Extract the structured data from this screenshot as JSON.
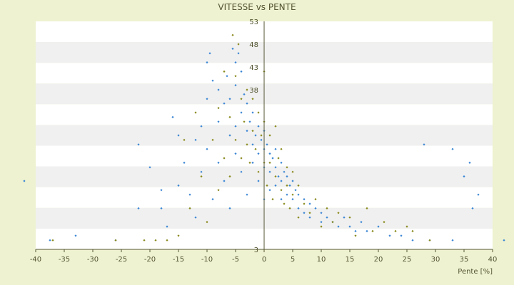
{
  "colors": {
    "background": "#eef2d0",
    "plot_band_light": "#ffffff",
    "plot_band_dark": "#f0f0f0",
    "axis": "#555533",
    "series_blue": "#3a86d4",
    "series_olive": "#8a8a1e"
  },
  "chart_data": {
    "type": "scatter",
    "title": "VITESSE vs PENTE",
    "xlabel": "Pente [%]",
    "ylabel": "",
    "xlim": [
      -40,
      40
    ],
    "ylim": [
      3,
      53
    ],
    "x_ticks": [
      "-40",
      "-35",
      "-30",
      "-25",
      "-20",
      "-15",
      "-10",
      "-5",
      "0",
      "5",
      "10",
      "15",
      "20",
      "25",
      "30",
      "35",
      "40"
    ],
    "y_ticks": [
      "3",
      "38",
      "43",
      "48",
      "53"
    ],
    "grid": "horizontal-bands",
    "series": [
      {
        "color": "#3a86d4",
        "marker": "diamond",
        "points": [
          [
            -42,
            18
          ],
          [
            -37.5,
            5
          ],
          [
            -33,
            6
          ],
          [
            -26,
            5
          ],
          [
            -22,
            26
          ],
          [
            -22,
            12
          ],
          [
            -20,
            21
          ],
          [
            -18,
            16
          ],
          [
            -18,
            12
          ],
          [
            -17,
            8
          ],
          [
            -16,
            32
          ],
          [
            -15,
            28
          ],
          [
            -15,
            17
          ],
          [
            -14,
            22
          ],
          [
            -13,
            15
          ],
          [
            -12,
            27
          ],
          [
            -12,
            10
          ],
          [
            -11,
            30
          ],
          [
            -11,
            20
          ],
          [
            -10,
            44
          ],
          [
            -10,
            36
          ],
          [
            -10,
            25
          ],
          [
            -9.5,
            46
          ],
          [
            -9,
            40
          ],
          [
            -9,
            14
          ],
          [
            -8,
            38
          ],
          [
            -8,
            31
          ],
          [
            -8,
            22
          ],
          [
            -7,
            35
          ],
          [
            -7,
            18
          ],
          [
            -6.5,
            41
          ],
          [
            -6,
            36
          ],
          [
            -6,
            28
          ],
          [
            -6,
            12
          ],
          [
            -5.5,
            47
          ],
          [
            -5,
            44
          ],
          [
            -5,
            39
          ],
          [
            -5,
            30
          ],
          [
            -5,
            24
          ],
          [
            -4.5,
            46
          ],
          [
            -4,
            42
          ],
          [
            -4,
            33
          ],
          [
            -4,
            20
          ],
          [
            -3.5,
            37
          ],
          [
            -3,
            35
          ],
          [
            -3,
            29
          ],
          [
            -3,
            15
          ],
          [
            -2.5,
            31
          ],
          [
            -2,
            33
          ],
          [
            -2,
            26
          ],
          [
            -2,
            22
          ],
          [
            -1.5,
            28
          ],
          [
            -1,
            30
          ],
          [
            -1,
            24
          ],
          [
            -1,
            18
          ],
          [
            -0.5,
            27
          ],
          [
            0,
            29
          ],
          [
            0,
            25
          ],
          [
            0,
            21
          ],
          [
            0,
            14
          ],
          [
            0.5,
            26
          ],
          [
            1,
            24
          ],
          [
            1,
            20
          ],
          [
            1,
            16
          ],
          [
            1.5,
            23
          ],
          [
            2,
            25
          ],
          [
            2,
            21
          ],
          [
            2,
            17
          ],
          [
            2.5,
            19
          ],
          [
            3,
            22
          ],
          [
            3,
            18
          ],
          [
            3,
            14
          ],
          [
            3.5,
            20
          ],
          [
            4,
            19
          ],
          [
            4,
            15
          ],
          [
            4.5,
            17
          ],
          [
            5,
            18
          ],
          [
            5,
            14
          ],
          [
            5.5,
            16
          ],
          [
            6,
            15
          ],
          [
            6,
            12
          ],
          [
            7,
            14
          ],
          [
            7,
            11
          ],
          [
            8,
            13
          ],
          [
            8,
            10
          ],
          [
            9,
            12
          ],
          [
            10,
            11
          ],
          [
            10,
            9
          ],
          [
            11,
            10
          ],
          [
            12,
            9
          ],
          [
            13,
            8
          ],
          [
            14,
            10
          ],
          [
            15,
            8
          ],
          [
            16,
            7
          ],
          [
            17,
            9
          ],
          [
            18,
            7
          ],
          [
            20,
            8
          ],
          [
            22,
            6
          ],
          [
            24,
            6
          ],
          [
            26,
            5
          ],
          [
            28,
            26
          ],
          [
            29,
            5
          ],
          [
            33,
            25
          ],
          [
            33,
            5
          ],
          [
            35,
            19
          ],
          [
            36.5,
            12
          ],
          [
            36,
            22
          ],
          [
            37.5,
            15
          ],
          [
            42,
            5
          ]
        ]
      },
      {
        "color": "#8a8a1e",
        "marker": "diamond",
        "points": [
          [
            -37,
            5
          ],
          [
            -26,
            5
          ],
          [
            -21,
            5
          ],
          [
            -19,
            5
          ],
          [
            -17,
            5
          ],
          [
            -15,
            6
          ],
          [
            -14,
            27
          ],
          [
            -13,
            12
          ],
          [
            -12,
            33
          ],
          [
            -11,
            19
          ],
          [
            -10,
            9
          ],
          [
            -9,
            27
          ],
          [
            -8,
            34
          ],
          [
            -8,
            16
          ],
          [
            -7,
            42
          ],
          [
            -7,
            23
          ],
          [
            -6,
            32
          ],
          [
            -6,
            19
          ],
          [
            -5.5,
            50
          ],
          [
            -5,
            41
          ],
          [
            -5,
            27
          ],
          [
            -4.5,
            48
          ],
          [
            -4,
            36
          ],
          [
            -4,
            23
          ],
          [
            -3.5,
            31
          ],
          [
            -3,
            38
          ],
          [
            -3,
            26
          ],
          [
            -2.5,
            22
          ],
          [
            -2,
            36
          ],
          [
            -2,
            29
          ],
          [
            -1.5,
            25
          ],
          [
            -1,
            33
          ],
          [
            -1,
            20
          ],
          [
            -0.5,
            28
          ],
          [
            0,
            42
          ],
          [
            0,
            31
          ],
          [
            0,
            22
          ],
          [
            0.5,
            17
          ],
          [
            1,
            28
          ],
          [
            1,
            22
          ],
          [
            1.5,
            14
          ],
          [
            2,
            30
          ],
          [
            2,
            19
          ],
          [
            2.5,
            23
          ],
          [
            3,
            25
          ],
          [
            3,
            16
          ],
          [
            3.5,
            13
          ],
          [
            4,
            21
          ],
          [
            4,
            17
          ],
          [
            4.5,
            12
          ],
          [
            5,
            20
          ],
          [
            5,
            15
          ],
          [
            6,
            17
          ],
          [
            6,
            10
          ],
          [
            7,
            13
          ],
          [
            8,
            11
          ],
          [
            9,
            14
          ],
          [
            10,
            8
          ],
          [
            11,
            12
          ],
          [
            12,
            9
          ],
          [
            13,
            11
          ],
          [
            15,
            10
          ],
          [
            16,
            6
          ],
          [
            18,
            12
          ],
          [
            19,
            7
          ],
          [
            21,
            9
          ],
          [
            23,
            7
          ],
          [
            25,
            8
          ],
          [
            26,
            7
          ],
          [
            29,
            5
          ]
        ]
      }
    ]
  }
}
